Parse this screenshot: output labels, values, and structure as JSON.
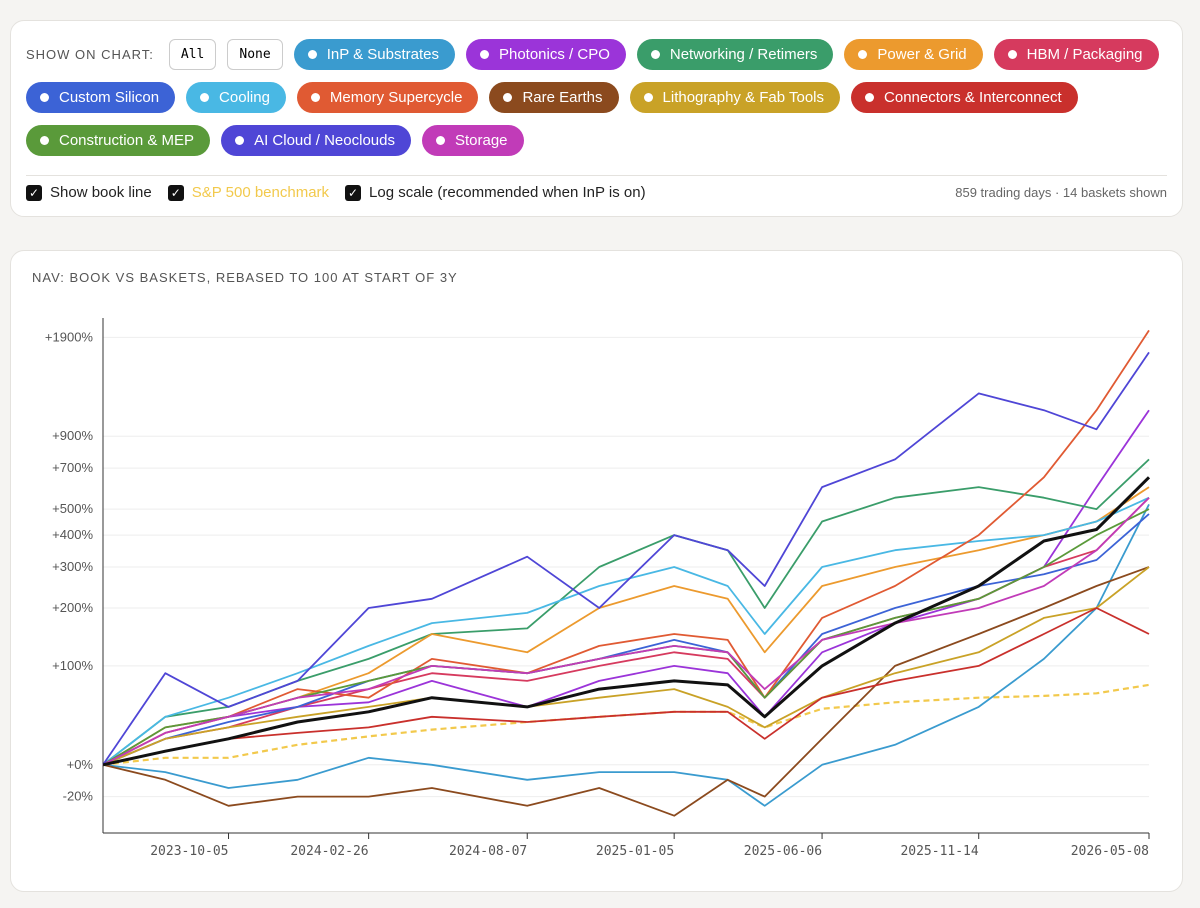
{
  "controls": {
    "label": "SHOW ON CHART:",
    "all": "All",
    "none": "None",
    "checks": [
      {
        "text": "Show book line",
        "checked": true
      },
      {
        "text": "S&P 500 benchmark",
        "checked": true,
        "color": "#f2c94c"
      },
      {
        "text": "Log scale (recommended when InP is on)",
        "checked": true
      }
    ],
    "status": "859 trading days · 14 baskets shown"
  },
  "chart_data": {
    "type": "line",
    "title": "NAV: BOOK VS BASKETS, REBASED TO 100 AT START OF 3Y",
    "log_scale": true,
    "grid": true,
    "x": [
      "2023-05-29",
      "2023-08-01",
      "2023-10-05",
      "2023-12-15",
      "2024-02-26",
      "2024-05-01",
      "2024-08-07",
      "2024-10-20",
      "2025-01-05",
      "2025-03-01",
      "2025-04-08",
      "2025-06-06",
      "2025-08-20",
      "2025-11-14",
      "2026-01-20",
      "2026-03-15",
      "2026-05-08"
    ],
    "xlim": [
      "2023-05-29",
      "2026-05-08"
    ],
    "xticks": [
      "2023-10-05",
      "2024-02-26",
      "2024-08-07",
      "2025-01-05",
      "2025-06-06",
      "2025-11-14",
      "2026-05-08"
    ],
    "ylim": [
      -38,
      2190
    ],
    "yticks": [
      {
        "value": -20,
        "label": "-20%"
      },
      {
        "value": 0,
        "label": "+0%"
      },
      {
        "value": 100,
        "label": "+100%"
      },
      {
        "value": 200,
        "label": "+200%"
      },
      {
        "value": 300,
        "label": "+300%"
      },
      {
        "value": 400,
        "label": "+400%"
      },
      {
        "value": 500,
        "label": "+500%"
      },
      {
        "value": 700,
        "label": "+700%"
      },
      {
        "value": 900,
        "label": "+900%"
      },
      {
        "value": 1900,
        "label": "+1900%"
      }
    ],
    "series": [
      {
        "name": "InP & Substrates",
        "color": "#3a9bcf",
        "values": [
          0,
          -5,
          -15,
          -10,
          5,
          0,
          -10,
          -5,
          -5,
          -10,
          -25,
          0,
          15,
          50,
          110,
          200,
          520
        ]
      },
      {
        "name": "Photonics / CPO",
        "color": "#9b34d9",
        "values": [
          0,
          25,
          40,
          50,
          55,
          80,
          50,
          80,
          100,
          90,
          40,
          120,
          170,
          220,
          300,
          600,
          1100
        ]
      },
      {
        "name": "Networking / Retimers",
        "color": "#3a9d6a",
        "values": [
          0,
          40,
          50,
          80,
          110,
          150,
          160,
          300,
          400,
          350,
          200,
          450,
          550,
          600,
          550,
          500,
          750
        ]
      },
      {
        "name": "Power & Grid",
        "color": "#ec9a2e",
        "values": [
          0,
          25,
          40,
          60,
          90,
          150,
          120,
          200,
          250,
          220,
          120,
          250,
          300,
          350,
          400,
          450,
          600
        ]
      },
      {
        "name": "HBM / Packaging",
        "color": "#d63a5e",
        "values": [
          0,
          20,
          30,
          50,
          70,
          90,
          80,
          100,
          120,
          110,
          60,
          140,
          180,
          220,
          300,
          350,
          550
        ]
      },
      {
        "name": "Custom Silicon",
        "color": "#3c63d6",
        "values": [
          0,
          20,
          35,
          50,
          80,
          100,
          90,
          110,
          140,
          120,
          60,
          150,
          200,
          250,
          280,
          320,
          480
        ]
      },
      {
        "name": "Cooling",
        "color": "#49b8e4",
        "values": [
          0,
          40,
          60,
          90,
          130,
          170,
          190,
          250,
          300,
          250,
          150,
          300,
          350,
          380,
          400,
          450,
          550
        ]
      },
      {
        "name": "Memory Supercycle",
        "color": "#e05a33",
        "values": [
          0,
          30,
          40,
          70,
          60,
          110,
          90,
          130,
          150,
          140,
          60,
          180,
          250,
          400,
          650,
          1100,
          2000
        ]
      },
      {
        "name": "Rare Earths",
        "color": "#8b4a1e",
        "values": [
          0,
          -10,
          -25,
          -20,
          -20,
          -15,
          -25,
          -15,
          -30,
          -10,
          -20,
          20,
          100,
          150,
          200,
          250,
          300
        ]
      },
      {
        "name": "Lithography & Fab Tools",
        "color": "#c9a227",
        "values": [
          0,
          20,
          30,
          40,
          50,
          60,
          50,
          60,
          70,
          50,
          30,
          60,
          90,
          120,
          180,
          200,
          300
        ]
      },
      {
        "name": "Connectors & Interconnect",
        "color": "#c9302c",
        "values": [
          0,
          10,
          20,
          25,
          30,
          40,
          35,
          40,
          45,
          45,
          20,
          60,
          80,
          100,
          150,
          200,
          150
        ]
      },
      {
        "name": "Construction & MEP",
        "color": "#5a9a3a",
        "values": [
          0,
          30,
          40,
          60,
          80,
          100,
          90,
          110,
          130,
          120,
          60,
          140,
          180,
          220,
          300,
          400,
          500
        ]
      },
      {
        "name": "AI Cloud / Neoclouds",
        "color": "#4f46d6",
        "values": [
          0,
          90,
          50,
          80,
          200,
          220,
          330,
          200,
          400,
          350,
          250,
          600,
          750,
          1250,
          1100,
          950,
          1700
        ]
      },
      {
        "name": "Storage",
        "color": "#c13bb8",
        "values": [
          0,
          25,
          40,
          60,
          70,
          100,
          90,
          110,
          130,
          120,
          70,
          140,
          170,
          200,
          250,
          350,
          550
        ]
      }
    ],
    "book": {
      "color": "#111111",
      "values": [
        0,
        10,
        20,
        35,
        45,
        60,
        50,
        70,
        80,
        75,
        40,
        100,
        170,
        250,
        380,
        420,
        650
      ]
    },
    "benchmark": {
      "color": "#f2c94c",
      "values": [
        0,
        5,
        5,
        15,
        22,
        28,
        35,
        40,
        45,
        45,
        30,
        48,
        55,
        60,
        62,
        65,
        75
      ]
    }
  }
}
